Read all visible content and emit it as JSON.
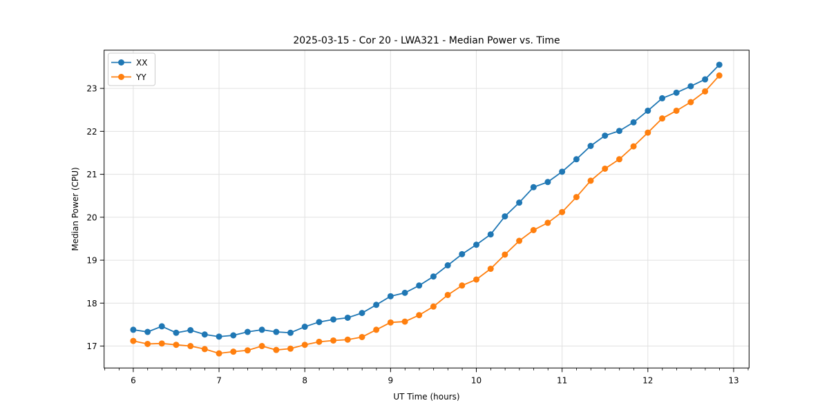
{
  "chart_data": {
    "type": "line",
    "title": "2025-03-15 - Cor 20 - LWA321 - Median Power vs. Time",
    "xlabel": "UT Time (hours)",
    "ylabel": "Median Power (CPU)",
    "xlim": [
      5.66,
      13.18
    ],
    "ylim": [
      16.49,
      23.89
    ],
    "xticks": [
      6,
      7,
      8,
      9,
      10,
      11,
      12,
      13
    ],
    "yticks": [
      17,
      18,
      19,
      20,
      21,
      22,
      23
    ],
    "x_minor_step": 0.1667,
    "grid": true,
    "grid_color": "#e0e0e0",
    "legend_position": "upper-left",
    "marker": "circle",
    "x": [
      6.0,
      6.167,
      6.333,
      6.5,
      6.667,
      6.833,
      7.0,
      7.167,
      7.333,
      7.5,
      7.667,
      7.833,
      8.0,
      8.167,
      8.333,
      8.5,
      8.667,
      8.833,
      9.0,
      9.167,
      9.333,
      9.5,
      9.667,
      9.833,
      10.0,
      10.167,
      10.333,
      10.5,
      10.667,
      10.833,
      11.0,
      11.167,
      11.333,
      11.5,
      11.667,
      11.833,
      12.0,
      12.167,
      12.333,
      12.5,
      12.667,
      12.833
    ],
    "series": [
      {
        "name": "XX",
        "color": "#1f77b4",
        "values": [
          17.38,
          17.33,
          17.46,
          17.31,
          17.37,
          17.27,
          17.22,
          17.25,
          17.33,
          17.38,
          17.33,
          17.31,
          17.45,
          17.56,
          17.62,
          17.66,
          17.77,
          17.96,
          18.16,
          18.24,
          18.41,
          18.62,
          18.88,
          19.14,
          19.36,
          19.6,
          20.02,
          20.34,
          20.7,
          20.82,
          21.06,
          21.35,
          21.66,
          21.9,
          22.01,
          22.21,
          22.48,
          22.77,
          22.9,
          23.05,
          23.21,
          23.55
        ]
      },
      {
        "name": "YY",
        "color": "#ff7f0e",
        "values": [
          17.12,
          17.05,
          17.06,
          17.03,
          17.0,
          16.93,
          16.83,
          16.87,
          16.9,
          17.0,
          16.91,
          16.94,
          17.03,
          17.1,
          17.13,
          17.15,
          17.21,
          17.38,
          17.55,
          17.57,
          17.72,
          17.92,
          18.19,
          18.41,
          18.55,
          18.8,
          19.13,
          19.45,
          19.7,
          19.87,
          20.12,
          20.47,
          20.85,
          21.13,
          21.35,
          21.65,
          21.97,
          22.3,
          22.48,
          22.68,
          22.93,
          23.3
        ]
      }
    ]
  }
}
